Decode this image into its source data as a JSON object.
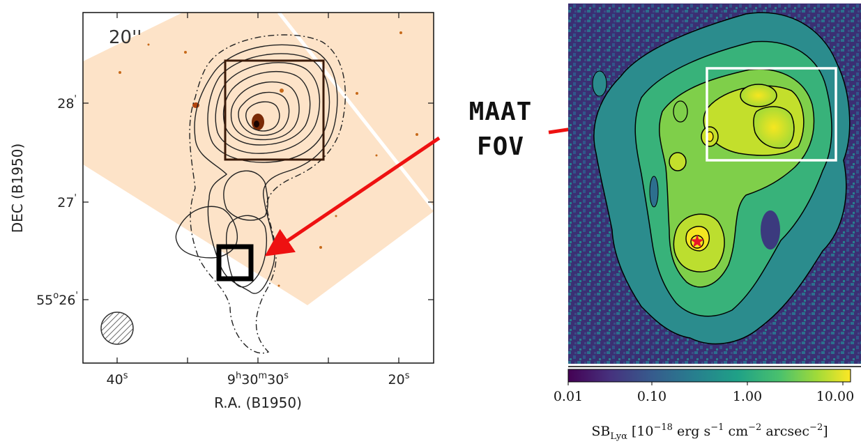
{
  "left_panel": {
    "scale_label": "20''",
    "y_axis": {
      "title": "DEC (B1950)",
      "ticks": [
        {
          "base": "28",
          "sup": "'"
        },
        {
          "base": "27",
          "sup": "'"
        },
        {
          "base": "55",
          "sup": "o",
          "rest": "26",
          "sup2": "'"
        }
      ]
    },
    "x_axis": {
      "title": "R.A. (B1950)",
      "ticks": [
        {
          "parts": [
            {
              "t": "40"
            },
            {
              "t": "s",
              "sup": true
            }
          ]
        },
        {
          "parts": [
            {
              "t": "9"
            },
            {
              "t": "h",
              "sup": true
            },
            {
              "t": "30"
            },
            {
              "t": "m",
              "sup": true
            },
            {
              "t": "30"
            },
            {
              "t": "s",
              "sup": true
            }
          ]
        },
        {
          "parts": [
            {
              "t": "20"
            },
            {
              "t": "s",
              "sup": true
            }
          ]
        }
      ]
    }
  },
  "callout": {
    "line1": "MAAT",
    "line2": "FOV",
    "arrow_color": "#ee1111"
  },
  "right_panel": {
    "colorbar": {
      "ticks": [
        "0.01",
        "0.10",
        "1.00",
        "10.00"
      ],
      "label_prefix": "SB",
      "label_sub": "Lyα",
      "label_unit": "[10",
      "label_exp": "−18",
      "label_rest": " erg s",
      "label_exp2": "−1",
      "label_rest2": " cm",
      "label_exp3": "−2",
      "label_rest3": " arcsec",
      "label_exp4": "−2",
      "label_end": "]"
    },
    "colors": {
      "background": "#3b2f73",
      "low": "#2f6b8e",
      "mid": "#22a884",
      "high": "#bddf26",
      "peak": "#f6e620",
      "marker": "#e8172a"
    }
  }
}
